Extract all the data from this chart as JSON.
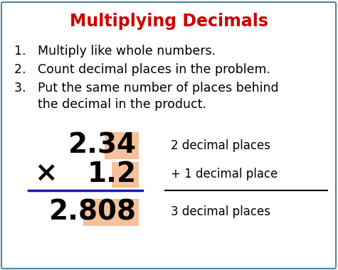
{
  "title": "Multiplying Decimals",
  "title_color": "#cc0000",
  "title_fontsize": 17,
  "bg_color": "#ffffff",
  "border_color": "#4a86a8",
  "step1": "1.   Multiply like whole numbers.",
  "step2": "2.   Count decimal places in the problem.",
  "step3a": "3.   Put the same number of places behind",
  "step3b": "      the decimal in the product.",
  "step_fontsize": 12.5,
  "num1": "2.34",
  "num2": "1.2",
  "product": "2.808",
  "multiply_sign": "×",
  "highlight_color": "#f5c09a",
  "line_color": "#1a1aaa",
  "math_fontsize": 28,
  "label1": "2 decimal places",
  "label2": "+ 1 decimal place",
  "label3": "3 decimal places",
  "label_fontsize": 12
}
